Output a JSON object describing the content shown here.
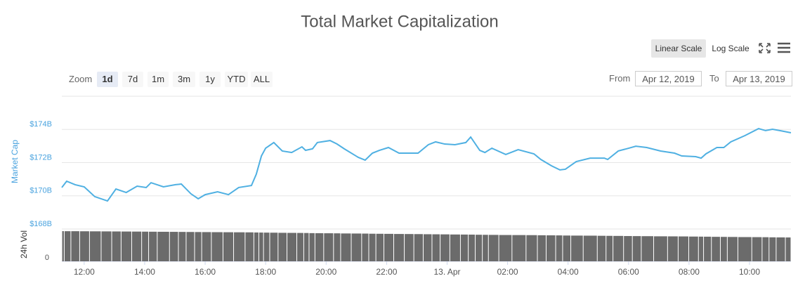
{
  "toolbar": {
    "zoom_label": "Zoom",
    "zoom_buttons": [
      "1d",
      "7d",
      "1m",
      "3m",
      "1y",
      "YTD",
      "ALL"
    ],
    "zoom_selected": 0,
    "scale_buttons": [
      "Linear Scale",
      "Log Scale"
    ],
    "scale_selected": 0,
    "from_label": "From",
    "from_value": "Apr 12, 2019",
    "to_label": "To",
    "to_value": "Apr 13, 2019"
  },
  "chart_data": {
    "type": "line",
    "title": "Total Market Capitalization",
    "ylabel": "Market Cap",
    "y2label": "24h Vol",
    "x": [
      11.26,
      11.42,
      11.7,
      12.0,
      12.35,
      12.77,
      13.05,
      13.39,
      13.75,
      14.05,
      14.21,
      14.62,
      15.02,
      15.21,
      15.53,
      15.77,
      16.0,
      16.41,
      16.77,
      17.11,
      17.53,
      17.69,
      17.86,
      18.0,
      18.27,
      18.55,
      18.86,
      19.2,
      19.32,
      19.55,
      19.71,
      20.13,
      20.36,
      20.6,
      21.06,
      21.29,
      21.53,
      21.76,
      22.06,
      22.41,
      22.76,
      23.04,
      23.38,
      23.62,
      23.92,
      24.26,
      24.62,
      24.78,
      25.08,
      25.25,
      25.48,
      25.94,
      26.35,
      26.87,
      27.1,
      27.45,
      27.73,
      27.91,
      28.27,
      28.73,
      29.2,
      29.31,
      29.66,
      30.01,
      30.24,
      30.6,
      31.06,
      31.52,
      31.76,
      32.22,
      32.4,
      32.56,
      32.92,
      33.15,
      33.38,
      33.85,
      34.3,
      34.53,
      34.76,
      35.0,
      35.37
    ],
    "xlim": [
      11.26,
      35.37
    ],
    "xticks": [
      {
        "value": 12,
        "label": "12:00"
      },
      {
        "value": 14,
        "label": "14:00"
      },
      {
        "value": 16,
        "label": "16:00"
      },
      {
        "value": 18,
        "label": "18:00"
      },
      {
        "value": 20,
        "label": "20:00"
      },
      {
        "value": 22,
        "label": "22:00"
      },
      {
        "value": 24,
        "label": "13. Apr"
      },
      {
        "value": 26,
        "label": "02:00"
      },
      {
        "value": 28,
        "label": "04:00"
      },
      {
        "value": 30,
        "label": "06:00"
      },
      {
        "value": 32,
        "label": "08:00"
      },
      {
        "value": 34,
        "label": "10:00"
      }
    ],
    "ylim": [
      168,
      176
    ],
    "yticks": [
      {
        "value": 168,
        "label": "$168B"
      },
      {
        "value": 170,
        "label": "$170B"
      },
      {
        "value": 172,
        "label": "$172B"
      },
      {
        "value": 174,
        "label": "$174B"
      }
    ],
    "y2lim": [
      0,
      50
    ],
    "y2ticks": [
      0
    ],
    "grid": true,
    "series": [
      {
        "type": "line",
        "color": "#4fb0e2",
        "values": [
          170.5,
          170.88,
          170.67,
          170.54,
          169.95,
          169.69,
          170.41,
          170.2,
          170.58,
          170.5,
          170.79,
          170.54,
          170.67,
          170.71,
          170.12,
          169.82,
          170.07,
          170.24,
          170.07,
          170.5,
          170.62,
          171.3,
          172.4,
          172.87,
          173.21,
          172.7,
          172.61,
          172.95,
          172.74,
          172.83,
          173.21,
          173.33,
          173.12,
          172.83,
          172.32,
          172.15,
          172.57,
          172.74,
          172.91,
          172.57,
          172.57,
          172.57,
          173.08,
          173.25,
          173.12,
          173.08,
          173.21,
          173.54,
          172.74,
          172.61,
          172.87,
          172.49,
          172.78,
          172.53,
          172.19,
          171.81,
          171.56,
          171.6,
          172.06,
          172.27,
          172.27,
          172.19,
          172.7,
          172.87,
          172.99,
          172.91,
          172.7,
          172.57,
          172.4,
          172.36,
          172.27,
          172.53,
          172.91,
          172.91,
          173.25,
          173.63,
          174.05,
          173.93,
          174.01,
          173.93,
          173.8
        ]
      },
      {
        "type": "bar",
        "axis": "y2",
        "color": "#6b6b6b",
        "values": [
          46.7,
          46.6,
          46.6,
          46.5,
          46.4,
          46.3,
          46.2,
          46.1,
          46.0,
          45.9,
          45.8,
          45.7,
          45.6,
          45.5,
          45.4,
          45.3,
          45.2,
          45.1,
          45.0,
          44.9,
          44.8,
          44.6,
          44.5,
          44.4,
          44.3,
          44.1,
          44.0,
          43.9,
          43.8,
          43.6,
          43.5,
          43.4,
          43.3,
          43.1,
          43.0,
          42.9,
          42.7,
          42.6,
          42.5,
          42.3,
          42.2,
          42.1,
          41.9,
          41.8,
          41.7,
          41.5,
          41.4,
          41.3,
          41.1,
          41.0,
          40.9,
          40.7,
          40.6,
          40.5,
          40.3,
          40.2,
          40.1,
          39.9,
          39.8,
          39.7,
          39.5,
          39.4,
          39.3,
          39.1,
          39.0,
          38.9,
          38.7,
          38.6,
          38.5,
          38.3,
          38.2,
          38.1,
          37.9,
          37.8,
          37.7,
          37.5,
          37.4,
          37.3,
          37.1,
          37.0,
          36.9
        ]
      }
    ]
  }
}
